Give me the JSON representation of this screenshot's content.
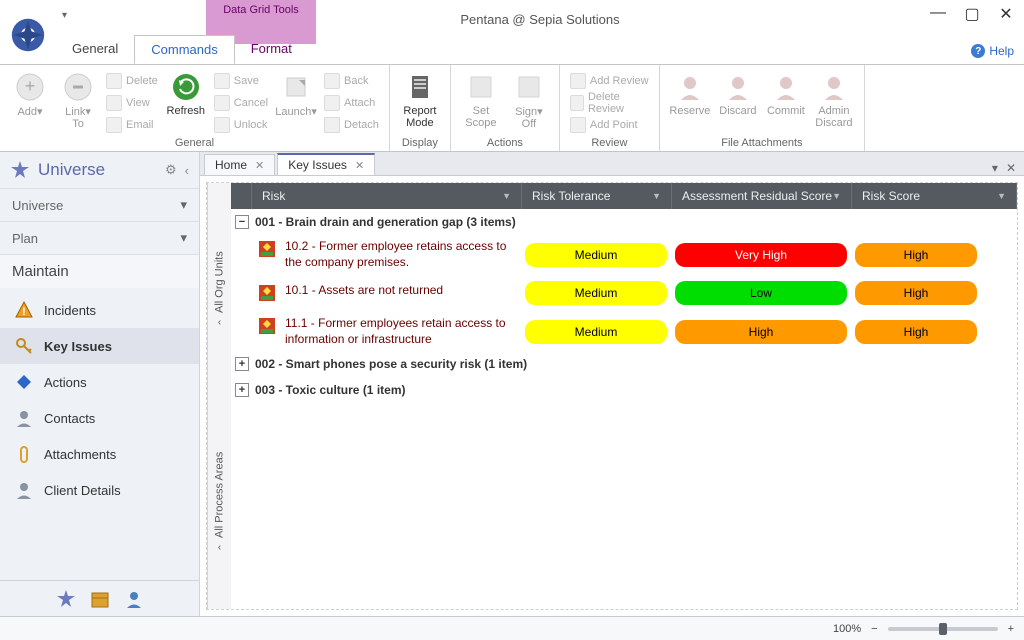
{
  "window": {
    "title": "Pentana @ Sepia Solutions",
    "context_tab": "Data Grid Tools",
    "help": "Help"
  },
  "ribbon_tabs": [
    "General",
    "Commands",
    "Format"
  ],
  "ribbon_active": 1,
  "ribbon": {
    "groups": [
      {
        "label": "General",
        "big": [
          {
            "label": "Add",
            "enabled": false,
            "sub": "▾"
          },
          {
            "label": "Link To",
            "enabled": false,
            "sub": "▾"
          },
          {
            "label": "Refresh",
            "enabled": true
          },
          {
            "label": "Launch",
            "enabled": false,
            "sub": "▾"
          }
        ],
        "col1": [
          "Delete",
          "View",
          "Email"
        ],
        "col2": [
          "Save",
          "Cancel",
          "Unlock"
        ],
        "col3": [
          "Back",
          "Attach",
          "Detach"
        ]
      },
      {
        "label": "Display",
        "big": [
          {
            "label": "Report Mode",
            "enabled": true
          }
        ]
      },
      {
        "label": "Actions",
        "big": [
          {
            "label": "Set Scope",
            "enabled": false
          },
          {
            "label": "Sign Off",
            "enabled": false,
            "sub": "▾"
          }
        ]
      },
      {
        "label": "Review",
        "col": [
          "Add Review",
          "Delete Review",
          "Add Point"
        ]
      },
      {
        "label": "File Attachments",
        "big": [
          {
            "label": "Reserve",
            "enabled": false
          },
          {
            "label": "Discard",
            "enabled": false
          },
          {
            "label": "Commit",
            "enabled": false
          },
          {
            "label": "Admin Discard",
            "enabled": false
          }
        ]
      }
    ]
  },
  "sidebar": {
    "title": "Universe",
    "sections": [
      {
        "label": "Universe",
        "chev": "▾"
      },
      {
        "label": "Plan",
        "chev": "▾"
      }
    ],
    "hdr": "Maintain",
    "items": [
      {
        "label": "Incidents",
        "icon": "warn",
        "color": "#f0a020"
      },
      {
        "label": "Key Issues",
        "icon": "key",
        "color": "#c08a20",
        "active": true
      },
      {
        "label": "Actions",
        "icon": "diamond",
        "color": "#2d66c9"
      },
      {
        "label": "Contacts",
        "icon": "person",
        "color": "#8892a0"
      },
      {
        "label": "Attachments",
        "icon": "clip",
        "color": "#e0a030"
      },
      {
        "label": "Client Details",
        "icon": "client",
        "color": "#8892a0"
      }
    ]
  },
  "doc_tabs": [
    {
      "label": "Home",
      "active": false
    },
    {
      "label": "Key Issues",
      "active": true
    }
  ],
  "vtabs": [
    "All Org Units",
    "All Process Areas"
  ],
  "grid": {
    "columns": [
      "Risk",
      "Risk Tolerance",
      "Assessment Residual Score",
      "Risk Score"
    ],
    "groups": [
      {
        "expanded": true,
        "title": "001 - Brain drain and generation gap (3 items)",
        "rows": [
          {
            "risk": "10.2 - Former employee retains access to the company premises.",
            "tolerance": {
              "text": "Medium",
              "bg": "#ffff00"
            },
            "residual": {
              "text": "Very High",
              "bg": "#ff0000",
              "fg": "#ffffff"
            },
            "score": {
              "text": "High",
              "bg": "#ff9900"
            }
          },
          {
            "risk": "10.1 - Assets are not returned",
            "tolerance": {
              "text": "Medium",
              "bg": "#ffff00"
            },
            "residual": {
              "text": "Low",
              "bg": "#00dd00"
            },
            "score": {
              "text": "High",
              "bg": "#ff9900"
            }
          },
          {
            "risk": "11.1 - Former employees retain access to information or infrastructure",
            "tolerance": {
              "text": "Medium",
              "bg": "#ffff00"
            },
            "residual": {
              "text": "High",
              "bg": "#ff9900"
            },
            "score": {
              "text": "High",
              "bg": "#ff9900"
            }
          }
        ]
      },
      {
        "expanded": false,
        "title": "002 - Smart phones pose a security risk (1 item)"
      },
      {
        "expanded": false,
        "title": "003 - Toxic culture (1 item)"
      }
    ]
  },
  "status": {
    "zoom": "100%"
  }
}
